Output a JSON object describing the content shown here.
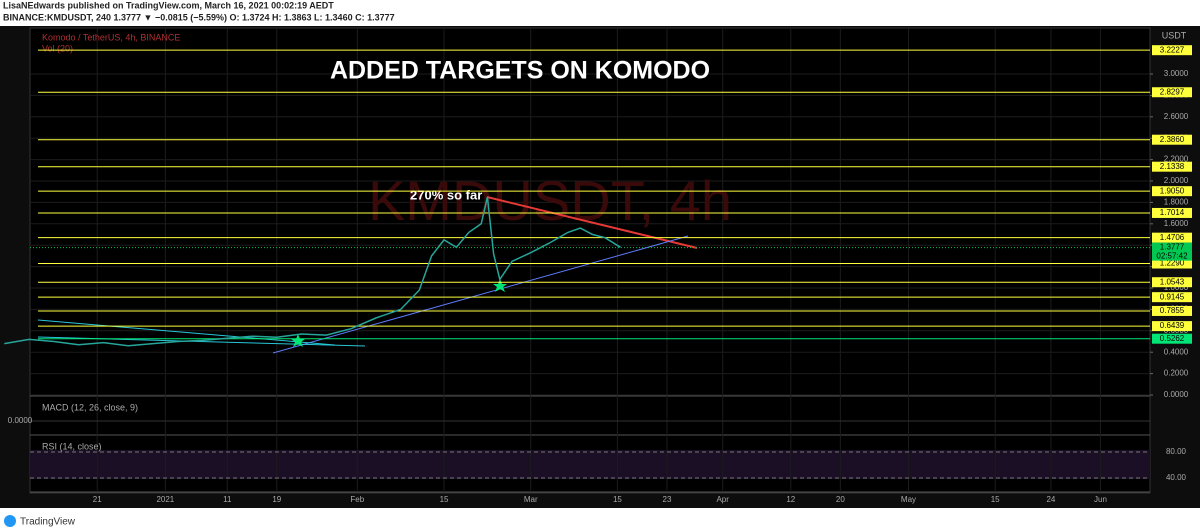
{
  "header": {
    "line1": "LisaNEdwards published on TradingView.com, March 16, 2021 00:02:19 AEDT",
    "line2": "BINANCE:KMDUSDT, 240 1.3777 ▼ −0.0815 (−5.59%) O: 1.3724 H: 1.3863 L: 1.3460 C: 1.3777"
  },
  "chart_data": {
    "type": "line",
    "title": "ADDED TARGETS ON KOMODO",
    "legend_title": "Komodo / TetherUS, 4h, BINANCE",
    "volume_label": "Vol (20)",
    "watermark": "KMDUSDT, 4h",
    "annotation": "270% so far",
    "currency": "USDT",
    "x": [
      -26,
      -22,
      -18,
      -14,
      -10,
      -6,
      -2,
      2,
      6,
      10,
      14,
      18,
      22,
      26,
      30,
      34,
      38,
      41,
      43,
      45,
      47,
      49,
      51,
      52,
      53,
      54,
      56,
      59,
      62,
      65,
      67,
      69,
      71,
      73.5
    ],
    "values": [
      0.48,
      0.52,
      0.5,
      0.47,
      0.49,
      0.46,
      0.48,
      0.5,
      0.51,
      0.53,
      0.55,
      0.54,
      0.57,
      0.56,
      0.62,
      0.72,
      0.8,
      0.98,
      1.3,
      1.45,
      1.38,
      1.52,
      1.6,
      1.85,
      1.32,
      1.08,
      1.25,
      1.33,
      1.42,
      1.52,
      1.56,
      1.5,
      1.47,
      1.38
    ],
    "color": "#26a69a",
    "xlim": [
      -26.7,
      159
    ],
    "xticks": [
      {
        "value": -11,
        "label": "21"
      },
      {
        "value": 0,
        "label": "2021"
      },
      {
        "value": 10,
        "label": "11"
      },
      {
        "value": 18,
        "label": "19"
      },
      {
        "value": 31,
        "label": "Feb"
      },
      {
        "value": 45,
        "label": "15"
      },
      {
        "value": 59,
        "label": "Mar"
      },
      {
        "value": 73,
        "label": "15"
      },
      {
        "value": 81,
        "label": "23"
      },
      {
        "value": 90,
        "label": "Apr"
      },
      {
        "value": 101,
        "label": "12"
      },
      {
        "value": 109,
        "label": "20"
      },
      {
        "value": 120,
        "label": "May"
      },
      {
        "value": 134,
        "label": "15"
      },
      {
        "value": 143,
        "label": "24"
      },
      {
        "value": 151,
        "label": "Jun"
      }
    ],
    "ylim": [
      0,
      3.43
    ],
    "yticks": [
      {
        "value": 0,
        "label": "0.0000"
      },
      {
        "value": 0.2,
        "label": "0.2000"
      },
      {
        "value": 0.4,
        "label": "0.4000"
      },
      {
        "value": 0.6,
        "label": "0.6000"
      },
      {
        "value": 0.8,
        "label": "0.8000"
      },
      {
        "value": 1,
        "label": "1.0000"
      },
      {
        "value": 1.2,
        "label": "1.2000"
      },
      {
        "value": 1.4,
        "label": "1.4000"
      },
      {
        "value": 1.6,
        "label": "1.6000"
      },
      {
        "value": 1.8,
        "label": "1.8000"
      },
      {
        "value": 2,
        "label": "2.0000"
      },
      {
        "value": 2.2,
        "label": "2.2000"
      },
      {
        "value": 2.4,
        "label": "2.4000"
      },
      {
        "value": 2.6,
        "label": "2.6000"
      },
      {
        "value": 2.8,
        "label": "2.8000"
      },
      {
        "value": 3,
        "label": "3.0000"
      }
    ],
    "levels": [
      {
        "value": 3.2227,
        "label": "3.2227"
      },
      {
        "value": 2.8297,
        "label": "2.8297"
      },
      {
        "value": 2.386,
        "label": "2.3860"
      },
      {
        "value": 2.1338,
        "label": "2.1338"
      },
      {
        "value": 1.905,
        "label": "1.9050"
      },
      {
        "value": 1.7014,
        "label": "1.7014"
      },
      {
        "value": 1.4706,
        "label": "1.4706"
      },
      {
        "value": 1.229,
        "label": "1.2290"
      },
      {
        "value": 1.0543,
        "label": "1.0543"
      },
      {
        "value": 0.9145,
        "label": "0.9145"
      },
      {
        "value": 0.7855,
        "label": "0.7855"
      },
      {
        "value": 0.6439,
        "label": "0.6439"
      },
      {
        "value": 0.5262,
        "label": "0.5262"
      }
    ],
    "level_color": "#ffff3b",
    "last_level_color": "#00e676",
    "last_price": {
      "value": 1.3777,
      "label": "1.3777"
    },
    "last_price_color": "#00c853",
    "countdown": "02:57:42",
    "grid": true,
    "macd_label": "MACD (12, 26, close, 9)",
    "macd_ticks": [
      {
        "value": 0,
        "label": "0.0000"
      }
    ],
    "rsi_label": "RSI (14, close)",
    "rsi_ylim": [
      21.5,
      103
    ],
    "rsi_ticks": [
      {
        "value": 80,
        "label": "80.00"
      },
      {
        "value": 40,
        "label": "40.00"
      }
    ]
  },
  "footer": {
    "brand": "TradingView"
  }
}
